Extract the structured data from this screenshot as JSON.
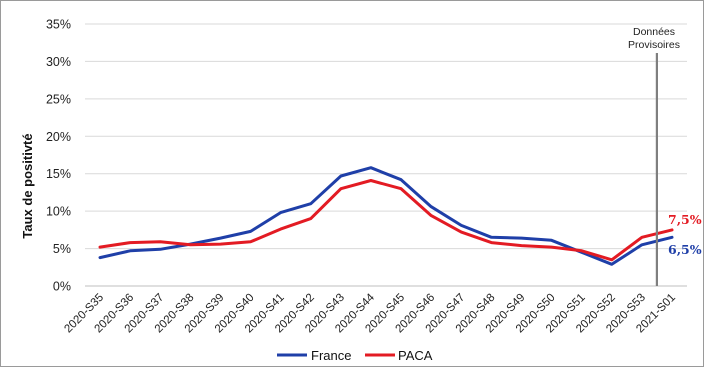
{
  "chart_data": {
    "type": "line",
    "title": "",
    "xlabel": "",
    "ylabel": "Taux de positivté",
    "ylim": [
      0,
      35
    ],
    "yticks": [
      "0%",
      "5%",
      "10%",
      "15%",
      "20%",
      "25%",
      "30%",
      "35%"
    ],
    "yticks_values": [
      0,
      5,
      10,
      15,
      20,
      25,
      30,
      35
    ],
    "grid": true,
    "legend_position": "bottom",
    "categories": [
      "2020-S35",
      "2020-S36",
      "2020-S37",
      "2020-S38",
      "2020-S39",
      "2020-S40",
      "2020-S41",
      "2020-S42",
      "2020-S43",
      "2020-S44",
      "2020-S45",
      "2020-S46",
      "2020-S47",
      "2020-S48",
      "2020-S49",
      "2020-S50",
      "2020-S51",
      "2020-S52",
      "2020-S53",
      "2021-S01"
    ],
    "series": [
      {
        "name": "France",
        "color": "#1f3fa8",
        "values": [
          3.8,
          4.7,
          4.9,
          5.6,
          6.4,
          7.3,
          9.8,
          11.0,
          14.7,
          15.8,
          14.2,
          10.6,
          8.1,
          6.5,
          6.4,
          6.1,
          4.5,
          2.9,
          5.5,
          6.5
        ]
      },
      {
        "name": "PACA",
        "color": "#e31b23",
        "values": [
          5.2,
          5.8,
          5.9,
          5.5,
          5.6,
          5.9,
          7.6,
          9.0,
          13.0,
          14.1,
          13.0,
          9.4,
          7.2,
          5.8,
          5.4,
          5.2,
          4.7,
          3.5,
          6.5,
          7.5
        ]
      }
    ],
    "annotations": {
      "provisional_label_line1": "Données",
      "provisional_label_line2": "Provisoires",
      "provisional_after_category": "2020-S53",
      "end_label_paca": "7,5%",
      "end_label_france": "6,5%"
    }
  }
}
